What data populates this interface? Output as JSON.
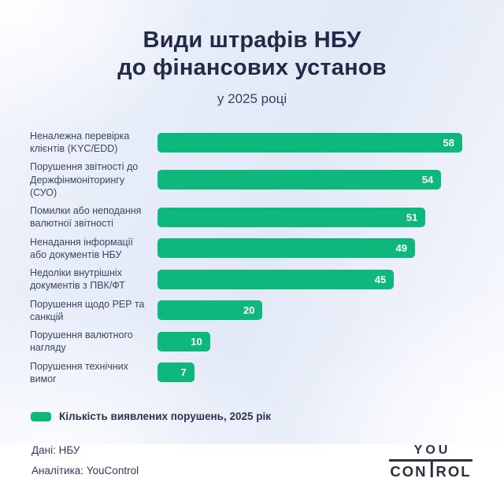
{
  "title": {
    "line1": "Види штрафів НБУ",
    "line2": "до фінансових установ",
    "subtitle": "у 2025 році"
  },
  "chart_data": {
    "type": "bar",
    "orientation": "horizontal",
    "categories": [
      "Неналежна перевірка клієнтів (KYC/EDD)",
      "Порушення звітності до Держфінмоніторингу (СУО)",
      "Помилки або неподання валютної звітності",
      "Ненадання інформації або документів НБУ",
      "Недоліки внутрішніх документів з ПВК/ФТ",
      "Порушення щодо PEP та санкцій",
      "Порушення валютного нагляду",
      "Порушення технічних вимог"
    ],
    "values": [
      58,
      54,
      51,
      49,
      45,
      20,
      10,
      7
    ],
    "max_value": 58,
    "xlim": [
      0,
      58
    ],
    "grid": false,
    "data_labels": "inside-end",
    "bar_color": "#0eb87d",
    "legend": {
      "position": "bottom-left",
      "label": "Кількість виявлених порушень, 2025 рік",
      "swatch_color": "#0eb87d"
    }
  },
  "footer": {
    "source": "Дані: НБУ",
    "analytics": "Аналітика: YouControl",
    "logo": {
      "you": "YOU",
      "con": "CON",
      "rol": "ROL"
    }
  },
  "colors": {
    "bar_green": "#0eb87d",
    "title_navy": "#232946",
    "label_navy": "#3d4463",
    "background_blue": "#e2e9f6"
  }
}
